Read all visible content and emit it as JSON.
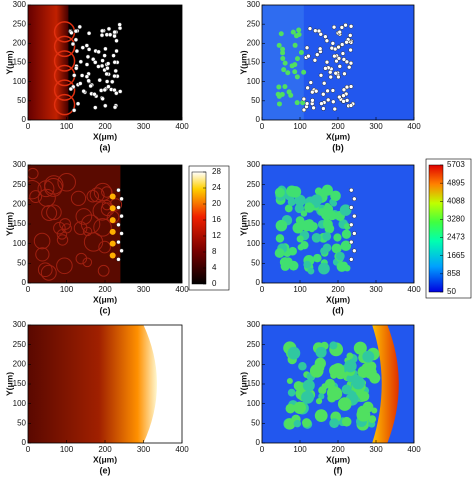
{
  "panels": [
    {
      "caption": "(a)",
      "xlabel": "X(μm)",
      "ylabel": "Y(μm)",
      "xticks": [
        0,
        100,
        200,
        300,
        400
      ],
      "yticks": [
        0,
        50,
        100,
        150,
        200,
        250,
        300
      ]
    },
    {
      "caption": "(b)",
      "xlabel": "X(μm)",
      "ylabel": "Y(μm)",
      "xticks": [
        0,
        100,
        200,
        300,
        400
      ],
      "yticks": [
        0,
        50,
        100,
        150,
        200,
        250,
        300
      ]
    },
    {
      "caption": "(c)",
      "xlabel": "X(μm)",
      "ylabel": "Y(μm)",
      "xticks": [
        0,
        100,
        200,
        300,
        400
      ],
      "yticks": [
        0,
        50,
        100,
        150,
        200,
        250,
        300
      ]
    },
    {
      "caption": "(d)",
      "xlabel": "X(μm)",
      "ylabel": "Y(μm)",
      "xticks": [
        0,
        100,
        200,
        300,
        400
      ],
      "yticks": [
        0,
        50,
        100,
        150,
        200,
        250,
        300
      ]
    },
    {
      "caption": "(e)",
      "xlabel": "X(μm)",
      "ylabel": "Y(μm)",
      "xticks": [
        0,
        100,
        200,
        300,
        400
      ],
      "yticks": [
        0,
        50,
        100,
        150,
        200,
        250,
        300
      ]
    },
    {
      "caption": "(f)",
      "xlabel": "X(μm)",
      "ylabel": "Y(μm)",
      "xticks": [
        0,
        100,
        200,
        300,
        400
      ],
      "yticks": [
        0,
        50,
        100,
        150,
        200,
        250,
        300
      ]
    }
  ],
  "colorbars": [
    {
      "ticks": [
        0,
        4,
        8,
        12,
        16,
        20,
        24,
        28
      ]
    },
    {
      "ticks": [
        50,
        858,
        1665,
        2473,
        3280,
        4088,
        4895,
        5703
      ]
    }
  ]
}
